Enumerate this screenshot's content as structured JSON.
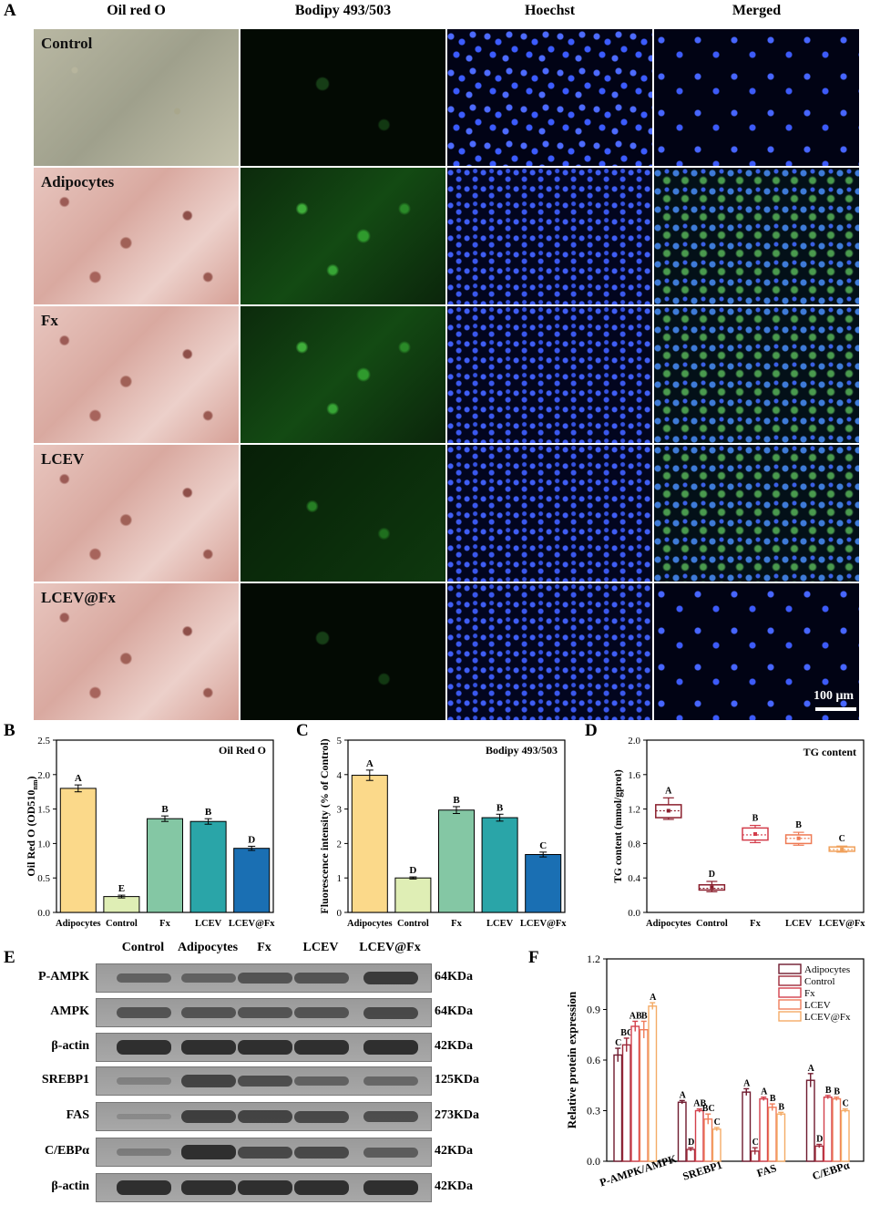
{
  "panel_labels": {
    "A": "A",
    "B": "B",
    "C": "C",
    "D": "D",
    "E": "E",
    "F": "F"
  },
  "micrograph": {
    "columns": [
      "Oil red O",
      "Bodipy 493/503",
      "Hoechst",
      "Merged"
    ],
    "rows": [
      "Control",
      "Adipocytes",
      "Fx",
      "LCEV",
      "LCEV@Fx"
    ],
    "scale_bar": "100 μm"
  },
  "chart_data": [
    {
      "panel": "B",
      "type": "bar",
      "title": "Oil Red O",
      "ylabel": "Oil Red O (OD510nm)",
      "ylabel_main": "Oil Red O (OD510",
      "ylabel_sub": "nm",
      "ylabel_end": ")",
      "categories": [
        "Adipocytes",
        "Control",
        "Fx",
        "LCEV",
        "LCEV@Fx"
      ],
      "values": [
        1.8,
        0.23,
        1.36,
        1.32,
        0.93
      ],
      "errors": [
        0.05,
        0.02,
        0.04,
        0.04,
        0.03
      ],
      "letters": [
        "A",
        "E",
        "B",
        "B",
        "D"
      ],
      "colors": [
        "#fbd98a",
        "#dfeeb5",
        "#84c7a4",
        "#2aa5a8",
        "#1a6fb3"
      ],
      "ylim": [
        0,
        2.5
      ],
      "yticks": [
        "0.0",
        "0.5",
        "1.0",
        "1.5",
        "2.0",
        "2.5"
      ]
    },
    {
      "panel": "C",
      "type": "bar",
      "title": "Bodipy 493/503",
      "ylabel": "Fluorescence intensity (% of Control)",
      "categories": [
        "Adipocytes",
        "Control",
        "Fx",
        "LCEV",
        "LCEV@Fx"
      ],
      "values": [
        3.98,
        1.0,
        2.97,
        2.75,
        1.68
      ],
      "errors": [
        0.15,
        0.03,
        0.1,
        0.1,
        0.07
      ],
      "letters": [
        "A",
        "D",
        "B",
        "B",
        "C"
      ],
      "colors": [
        "#fbd98a",
        "#dfeeb5",
        "#84c7a4",
        "#2aa5a8",
        "#1a6fb3"
      ],
      "ylim": [
        0,
        5
      ],
      "yticks": [
        "0",
        "1",
        "2",
        "3",
        "4",
        "5"
      ]
    },
    {
      "panel": "D",
      "type": "box",
      "title": "TG content",
      "ylabel": "TG content (mmol/gprot)",
      "categories": [
        "Adipocytes",
        "Control",
        "Fx",
        "LCEV",
        "LCEV@Fx"
      ],
      "boxes": [
        {
          "min": 1.08,
          "q1": 1.1,
          "median": 1.18,
          "q3": 1.25,
          "max": 1.33,
          "mean": 1.18
        },
        {
          "min": 0.24,
          "q1": 0.26,
          "median": 0.28,
          "q3": 0.32,
          "max": 0.36,
          "mean": 0.29
        },
        {
          "min": 0.81,
          "q1": 0.84,
          "median": 0.9,
          "q3": 0.98,
          "max": 1.01,
          "mean": 0.91
        },
        {
          "min": 0.78,
          "q1": 0.8,
          "median": 0.86,
          "q3": 0.9,
          "max": 0.93,
          "mean": 0.86
        },
        {
          "min": 0.7,
          "q1": 0.71,
          "median": 0.73,
          "q3": 0.76,
          "max": 0.77,
          "mean": 0.73
        }
      ],
      "letters": [
        "A",
        "D",
        "B",
        "B",
        "C"
      ],
      "colors": [
        "#8a1f2d",
        "#8a1f2d",
        "#d33c4a",
        "#ee7b55",
        "#f0a05a"
      ],
      "ylim": [
        0,
        2.0
      ],
      "yticks": [
        "0.0",
        "0.4",
        "0.8",
        "1.2",
        "1.6",
        "2.0"
      ]
    },
    {
      "panel": "F",
      "type": "bar",
      "ylabel": "Relative protein expression",
      "categories": [
        "P-AMPK/AMPK",
        "SREBP1",
        "FAS",
        "C/EBPα"
      ],
      "series": [
        {
          "name": "Adipocytes",
          "color": "#6e1a2e",
          "values": [
            0.63,
            0.35,
            0.41,
            0.48
          ],
          "errors": [
            0.04,
            0.01,
            0.02,
            0.04
          ],
          "letters": [
            "C",
            "A",
            "A",
            "A"
          ]
        },
        {
          "name": "Control",
          "color": "#9e2a3a",
          "values": [
            0.69,
            0.07,
            0.06,
            0.09
          ],
          "errors": [
            0.04,
            0.01,
            0.02,
            0.01
          ],
          "letters": [
            "BC",
            "D",
            "C",
            "D"
          ]
        },
        {
          "name": "Fx",
          "color": "#d3404c",
          "values": [
            0.8,
            0.3,
            0.37,
            0.38
          ],
          "errors": [
            0.03,
            0.01,
            0.01,
            0.01
          ],
          "letters": [
            "AB",
            "AB",
            "A",
            "B"
          ]
        },
        {
          "name": "LCEV",
          "color": "#ef7d5a",
          "values": [
            0.78,
            0.25,
            0.32,
            0.37
          ],
          "errors": [
            0.05,
            0.03,
            0.02,
            0.01
          ],
          "letters": [
            "B",
            "BC",
            "B",
            "B"
          ]
        },
        {
          "name": "LCEV@Fx",
          "color": "#f4ab66",
          "values": [
            0.92,
            0.19,
            0.28,
            0.3
          ],
          "errors": [
            0.02,
            0.01,
            0.01,
            0.01
          ],
          "letters": [
            "A",
            "C",
            "B",
            "C"
          ]
        }
      ],
      "ylim": [
        0,
        1.2
      ],
      "yticks": [
        "0.0",
        "0.3",
        "0.6",
        "0.9",
        "1.2"
      ]
    }
  ],
  "western_blot": {
    "lanes": [
      "Control",
      "Adipocytes",
      "Fx",
      "LCEV",
      "LCEV@Fx"
    ],
    "rows": [
      {
        "label": "P-AMPK",
        "kda": "64KDa",
        "intensities": [
          0.45,
          0.45,
          0.6,
          0.6,
          0.85
        ]
      },
      {
        "label": "AMPK",
        "kda": "64KDa",
        "intensities": [
          0.6,
          0.6,
          0.6,
          0.6,
          0.7
        ]
      },
      {
        "label": "β-actin",
        "kda": "42KDa",
        "intensities": [
          0.95,
          0.95,
          0.95,
          0.95,
          0.95
        ]
      },
      {
        "label": "SREBP1",
        "kda": "125KDa",
        "intensities": [
          0.15,
          0.75,
          0.65,
          0.45,
          0.4
        ]
      },
      {
        "label": "FAS",
        "kda": "273KDa",
        "intensities": [
          0.05,
          0.8,
          0.75,
          0.7,
          0.65
        ]
      },
      {
        "label": "C/EBPα",
        "kda": "42KDa",
        "intensities": [
          0.2,
          0.95,
          0.7,
          0.7,
          0.5
        ]
      },
      {
        "label": "β-actin",
        "kda": "42KDa",
        "intensities": [
          0.95,
          0.95,
          0.95,
          0.95,
          0.95
        ]
      }
    ]
  }
}
